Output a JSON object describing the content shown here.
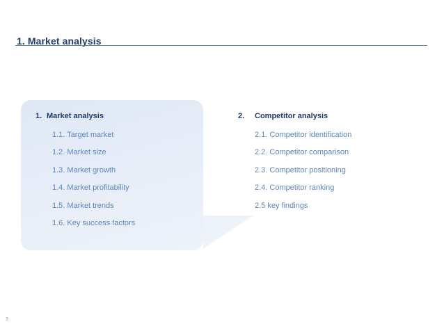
{
  "header": {
    "title": "1. Market analysis"
  },
  "sections": [
    {
      "number": "1.",
      "heading": "Market analysis",
      "items": [
        "1.1. Target market",
        "1.2. Market size",
        "1.3. Market growth",
        "1.4. Market profitability",
        "1.5. Market trends",
        "1.6. Key success factors"
      ]
    },
    {
      "number": "2.",
      "heading": "Competitor analysis",
      "items": [
        "2.1. Competitor identification",
        "2.2. Competitor comparison",
        "2.3. Competitor positioning",
        "2.4. Competitor ranking",
        "2.5 key findings"
      ]
    }
  ],
  "footer": {
    "page_number": "3"
  },
  "colors": {
    "title": "#1f3b6e",
    "rule": "#5d7fb3",
    "sub_item": "#5b86c4",
    "highlight": "#e3ebf7"
  }
}
